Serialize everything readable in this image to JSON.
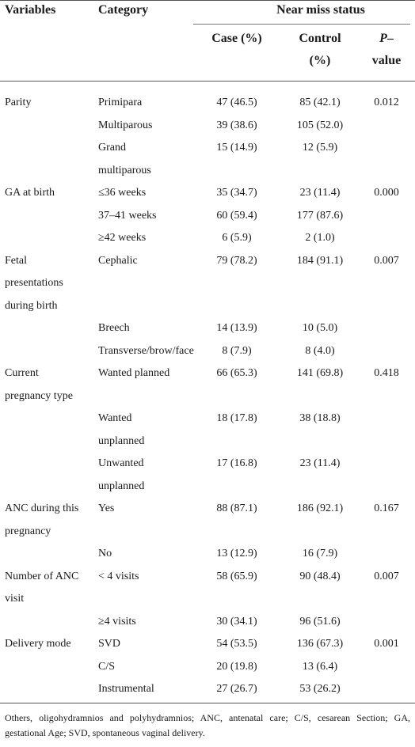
{
  "header": {
    "variables": "Variables",
    "category": "Category",
    "group": "Near miss status",
    "case": "Case (%)",
    "control_1": "Control",
    "control_2": "(%)",
    "p_1": "P",
    "p_1b": "–",
    "p_2": "value"
  },
  "rows": [
    {
      "var": [
        "Parity"
      ],
      "cat": [
        "Primipara"
      ],
      "case": "47 (46.5)",
      "control": "85 (42.1)",
      "p": "0.012"
    },
    {
      "var": [],
      "cat": [
        "Multiparous"
      ],
      "case": "39 (38.6)",
      "control": "105 (52.0)",
      "p": ""
    },
    {
      "var": [],
      "cat": [
        "Grand",
        "multiparous"
      ],
      "case": "15 (14.9)",
      "control": "12 (5.9)",
      "p": ""
    },
    {
      "var": [
        "GA at birth"
      ],
      "cat": [
        "≤36 weeks"
      ],
      "case": "35 (34.7)",
      "control": "23 (11.4)",
      "p": "0.000"
    },
    {
      "var": [],
      "cat": [
        "37–41 weeks"
      ],
      "case": "60 (59.4)",
      "control": "177 (87.6)",
      "p": ""
    },
    {
      "var": [],
      "cat": [
        "≥42 weeks"
      ],
      "case": "6 (5.9)",
      "control": "2 (1.0)",
      "p": ""
    },
    {
      "var": [
        "Fetal",
        "presentations",
        "during birth"
      ],
      "cat": [
        "Cephalic"
      ],
      "case": "79 (78.2)",
      "control": "184 (91.1)",
      "p": "0.007"
    },
    {
      "var": [],
      "cat": [
        "Breech"
      ],
      "case": "14 (13.9)",
      "control": "10 (5.0)",
      "p": ""
    },
    {
      "var": [],
      "cat": [
        "Transverse/brow/face"
      ],
      "case": "8 (7.9)",
      "control": "8 (4.0)",
      "p": ""
    },
    {
      "var": [
        "Current",
        "pregnancy type"
      ],
      "cat": [
        "Wanted planned"
      ],
      "case": "66 (65.3)",
      "control": "141 (69.8)",
      "p": "0.418"
    },
    {
      "var": [],
      "cat": [
        "Wanted",
        "unplanned"
      ],
      "case": "18 (17.8)",
      "control": "38 (18.8)",
      "p": ""
    },
    {
      "var": [],
      "cat": [
        "Unwanted",
        "unplanned"
      ],
      "case": "17 (16.8)",
      "control": "23 (11.4)",
      "p": ""
    },
    {
      "var": [
        "ANC during this",
        "pregnancy"
      ],
      "cat": [
        "Yes"
      ],
      "case": "88 (87.1)",
      "control": "186 (92.1)",
      "p": "0.167"
    },
    {
      "var": [],
      "cat": [
        "No"
      ],
      "case": "13 (12.9)",
      "control": "16 (7.9)",
      "p": ""
    },
    {
      "var": [
        "Number of ANC",
        "visit"
      ],
      "cat": [
        "< 4 visits"
      ],
      "case": "58 (65.9)",
      "control": "90 (48.4)",
      "p": "0.007"
    },
    {
      "var": [],
      "cat": [
        "≥4 visits"
      ],
      "case": "30 (34.1)",
      "control": "96 (51.6)",
      "p": ""
    },
    {
      "var": [
        "Delivery mode"
      ],
      "cat": [
        "SVD"
      ],
      "case": "54 (53.5)",
      "control": "136 (67.3)",
      "p": "0.001"
    },
    {
      "var": [],
      "cat": [
        "C/S"
      ],
      "case": "20 (19.8)",
      "control": "13 (6.4)",
      "p": ""
    },
    {
      "var": [],
      "cat": [
        "Instrumental"
      ],
      "case": "27 (26.7)",
      "control": "53 (26.2)",
      "p": ""
    }
  ],
  "footnote": "Others, oligohydramnios and polyhydramnios; ANC, antenatal care; C/S, cesarean Section; GA, gestational Age; SVD, spontaneous vaginal delivery."
}
